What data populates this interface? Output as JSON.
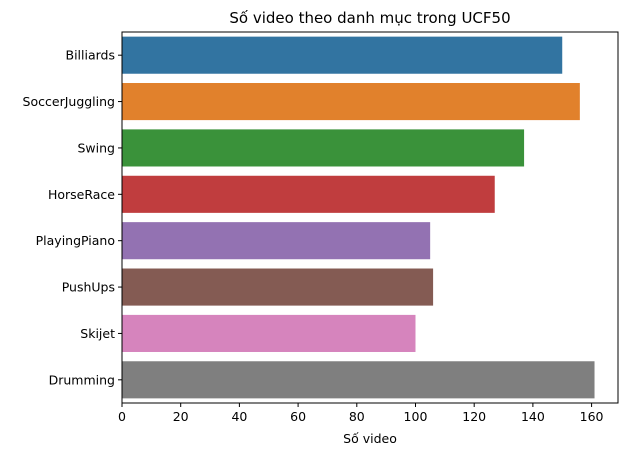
{
  "chart_data": {
    "type": "bar",
    "orientation": "horizontal",
    "title": "Số video theo danh mục trong UCF50",
    "xlabel": "Số video",
    "ylabel": "",
    "categories": [
      "Billiards",
      "SoccerJuggling",
      "Swing",
      "HorseRace",
      "PlayingPiano",
      "PushUps",
      "Skijet",
      "Drumming"
    ],
    "values": [
      150,
      156,
      137,
      127,
      105,
      106,
      100,
      161
    ],
    "colors": [
      "#3274a1",
      "#e1812c",
      "#3a923a",
      "#c03d3e",
      "#9372b2",
      "#845b53",
      "#d684bd",
      "#7f7f7f"
    ],
    "xlim": [
      0,
      169
    ],
    "xticks": [
      0,
      20,
      40,
      60,
      80,
      100,
      120,
      140,
      160
    ],
    "grid": false
  }
}
